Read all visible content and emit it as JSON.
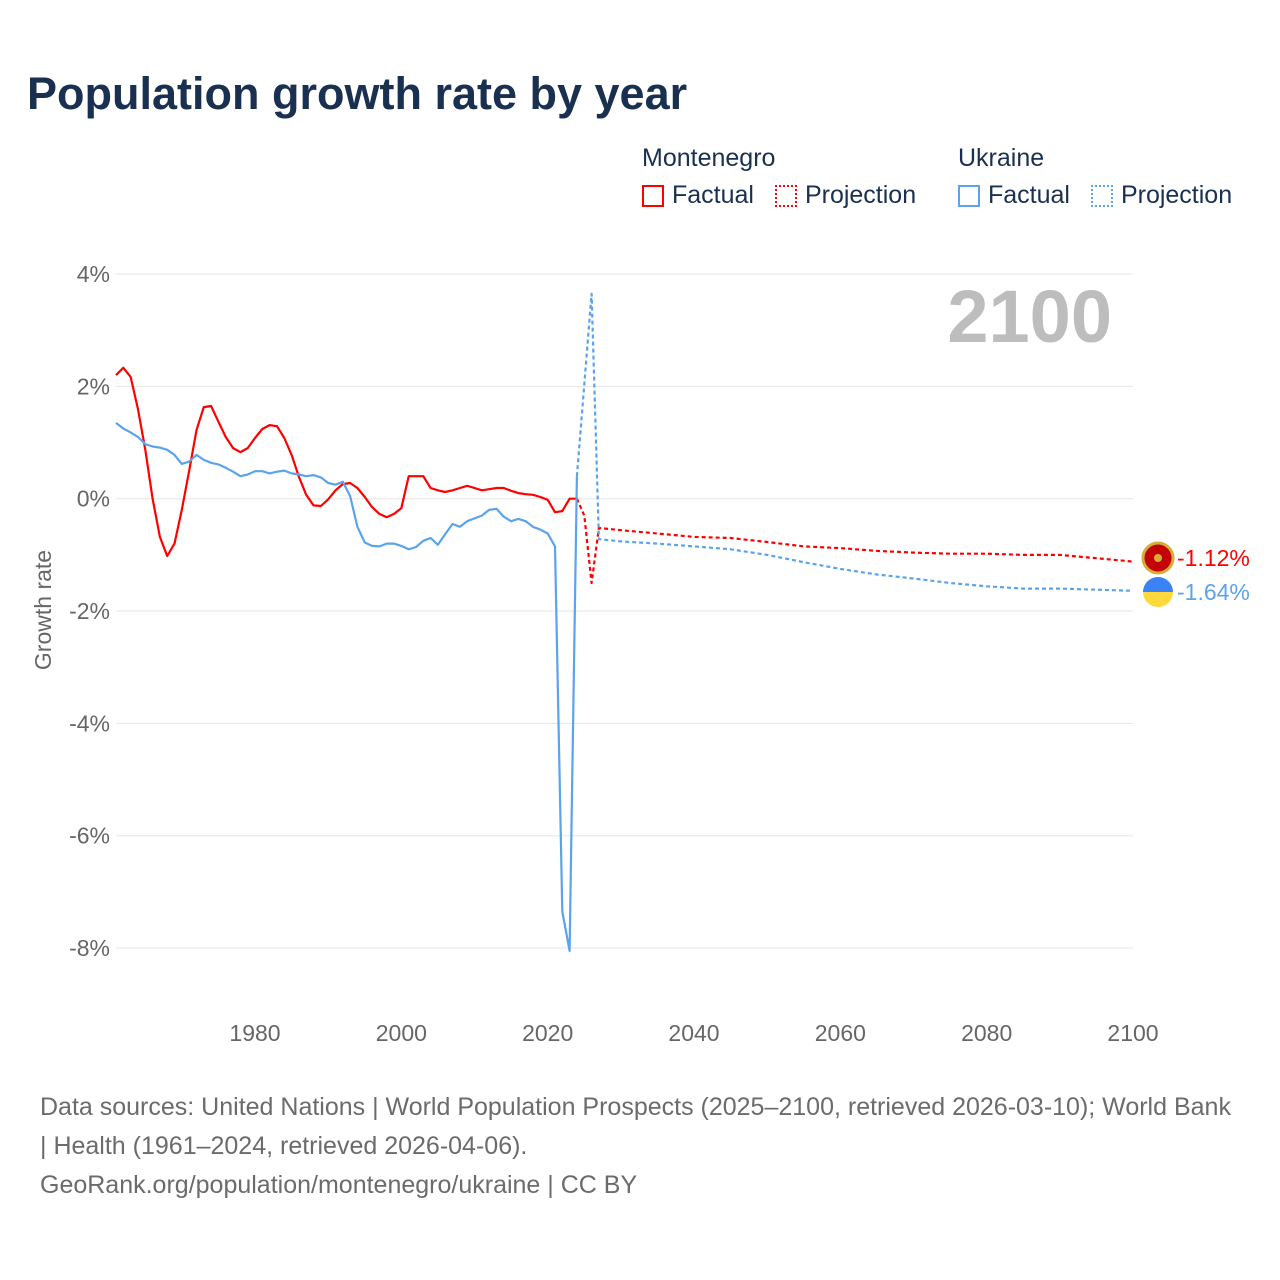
{
  "title": "Population growth rate by year",
  "legend": {
    "groups": [
      {
        "name": "Montenegro",
        "factual": "Factual",
        "projection": "Projection",
        "color": "#ff0000"
      },
      {
        "name": "Ukraine",
        "factual": "Factual",
        "projection": "Projection",
        "color": "#5ba3ea"
      }
    ]
  },
  "year_label": "2100",
  "end_labels": {
    "montenegro": "-1.12%",
    "ukraine": "-1.64%"
  },
  "footer": {
    "sources": "Data sources: United Nations | World Population Prospects (2025–2100, retrieved 2026-03-10); World Bank | Health (1961–2024, retrieved 2026-04-06).",
    "link": "GeoRank.org/population/montenegro/ukraine | CC BY"
  },
  "chart_data": {
    "type": "line",
    "title": "Population growth rate by year",
    "xlabel": "",
    "ylabel": "Growth rate",
    "xlim": [
      1961,
      2100
    ],
    "ylim": [
      -9,
      4.4
    ],
    "x_ticks": [
      "1980",
      "2000",
      "2020",
      "2040",
      "2060",
      "2080",
      "2100"
    ],
    "x_tick_values": [
      1980,
      2000,
      2020,
      2040,
      2060,
      2080,
      2100
    ],
    "y_ticks": [
      "4%",
      "2%",
      "0%",
      "-2%",
      "-4%",
      "-6%",
      "-8%"
    ],
    "y_tick_values": [
      4,
      2,
      0,
      -2,
      -4,
      -6,
      -8
    ],
    "grid": true,
    "legend_position": "top-right",
    "series": [
      {
        "name": "Montenegro Factual",
        "color": "#ff0000",
        "dash": false,
        "x": [
          1961,
          1962,
          1963,
          1964,
          1965,
          1966,
          1967,
          1968,
          1969,
          1970,
          1971,
          1972,
          1973,
          1974,
          1975,
          1976,
          1977,
          1978,
          1979,
          1980,
          1981,
          1982,
          1983,
          1984,
          1985,
          1986,
          1987,
          1988,
          1989,
          1990,
          1991,
          1992,
          1993,
          1994,
          1995,
          1996,
          1997,
          1998,
          1999,
          2000,
          2001,
          2002,
          2003,
          2004,
          2005,
          2006,
          2007,
          2008,
          2009,
          2010,
          2011,
          2012,
          2013,
          2014,
          2015,
          2016,
          2017,
          2018,
          2019,
          2020,
          2021,
          2022,
          2023,
          2024
        ],
        "values": [
          2.2,
          2.33,
          2.17,
          1.6,
          0.87,
          0,
          -0.68,
          -1.02,
          -0.8,
          -0.2,
          0.5,
          1.22,
          1.63,
          1.65,
          1.37,
          1.1,
          0.9,
          0.83,
          0.9,
          1.08,
          1.24,
          1.31,
          1.29,
          1.08,
          0.78,
          0.39,
          0.07,
          -0.12,
          -0.13,
          -0.01,
          0.15,
          0.26,
          0.28,
          0.19,
          0.03,
          -0.15,
          -0.27,
          -0.33,
          -0.27,
          -0.17,
          0.4,
          0.4,
          0.4,
          0.19,
          0.15,
          0.12,
          0.15,
          0.19,
          0.23,
          0.19,
          0.15,
          0.17,
          0.19,
          0.19,
          0.14,
          0.1,
          0.08,
          0.07,
          0.03,
          -0.02,
          -0.24,
          -0.22,
          0,
          0
        ]
      },
      {
        "name": "Montenegro Projection",
        "color": "#ff0000",
        "dash": true,
        "x": [
          2024,
          2025,
          2026,
          2027,
          2030,
          2035,
          2040,
          2045,
          2050,
          2055,
          2060,
          2065,
          2070,
          2075,
          2080,
          2085,
          2090,
          2095,
          2100
        ],
        "values": [
          0,
          -0.3,
          -1.5,
          -0.52,
          -0.56,
          -0.62,
          -0.68,
          -0.7,
          -0.77,
          -0.85,
          -0.88,
          -0.93,
          -0.96,
          -0.98,
          -0.98,
          -1.0,
          -1.0,
          -1.06,
          -1.12
        ]
      },
      {
        "name": "Ukraine Factual",
        "color": "#5ba3ea",
        "dash": false,
        "x": [
          1961,
          1962,
          1963,
          1964,
          1965,
          1966,
          1967,
          1968,
          1969,
          1970,
          1971,
          1972,
          1973,
          1974,
          1975,
          1976,
          1977,
          1978,
          1979,
          1980,
          1981,
          1982,
          1983,
          1984,
          1985,
          1986,
          1987,
          1988,
          1989,
          1990,
          1991,
          1992,
          1993,
          1994,
          1995,
          1996,
          1997,
          1998,
          1999,
          2000,
          2001,
          2002,
          2003,
          2004,
          2005,
          2006,
          2007,
          2008,
          2009,
          2010,
          2011,
          2012,
          2013,
          2014,
          2015,
          2016,
          2017,
          2018,
          2019,
          2020,
          2021,
          2022,
          2023,
          2024
        ],
        "values": [
          1.35,
          1.25,
          1.18,
          1.1,
          0.97,
          0.93,
          0.91,
          0.87,
          0.78,
          0.62,
          0.66,
          0.78,
          0.69,
          0.64,
          0.61,
          0.55,
          0.48,
          0.4,
          0.43,
          0.49,
          0.49,
          0.45,
          0.48,
          0.5,
          0.45,
          0.43,
          0.4,
          0.42,
          0.38,
          0.28,
          0.25,
          0.3,
          0.05,
          -0.5,
          -0.78,
          -0.84,
          -0.85,
          -0.8,
          -0.8,
          -0.84,
          -0.9,
          -0.86,
          -0.75,
          -0.7,
          -0.82,
          -0.63,
          -0.45,
          -0.5,
          -0.4,
          -0.35,
          -0.3,
          -0.2,
          -0.18,
          -0.32,
          -0.4,
          -0.36,
          -0.4,
          -0.5,
          -0.55,
          -0.62,
          -0.85,
          -7.35,
          -8.05,
          0.4
        ]
      },
      {
        "name": "Ukraine Projection",
        "color": "#5ba3ea",
        "dash": true,
        "x": [
          2024,
          2026,
          2027,
          2030,
          2035,
          2040,
          2045,
          2050,
          2055,
          2060,
          2065,
          2070,
          2075,
          2080,
          2085,
          2090,
          2095,
          2100
        ],
        "values": [
          0.4,
          3.65,
          -0.72,
          -0.76,
          -0.8,
          -0.85,
          -0.9,
          -1.0,
          -1.13,
          -1.25,
          -1.35,
          -1.42,
          -1.5,
          -1.56,
          -1.6,
          -1.6,
          -1.62,
          -1.64
        ]
      }
    ]
  }
}
